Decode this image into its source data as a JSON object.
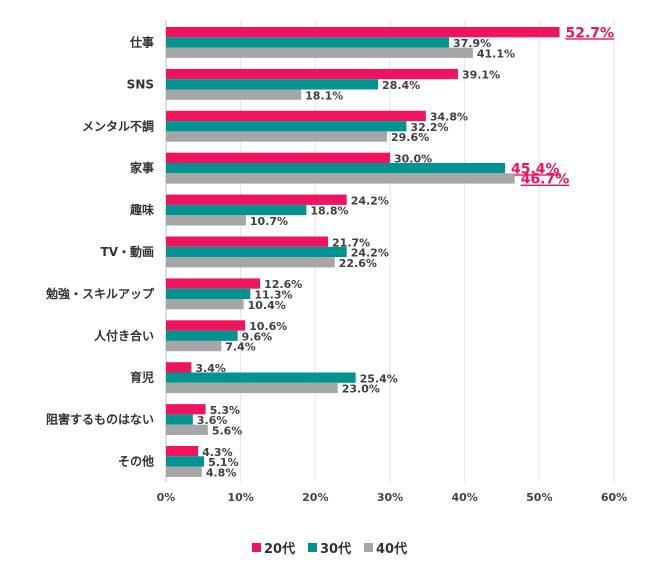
{
  "chart_data": {
    "type": "bar",
    "orientation": "horizontal",
    "title": "",
    "xlabel": "",
    "ylabel": "",
    "xlim": [
      0,
      60
    ],
    "xticks": [
      "0%",
      "10%",
      "20%",
      "30%",
      "40%",
      "50%",
      "60%"
    ],
    "grid": true,
    "legend_position": "bottom",
    "categories": [
      "仕事",
      "SNS",
      "メンタル不調",
      "家事",
      "趣味",
      "TV・動画",
      "勉強・スキルアップ",
      "人付き合い",
      "育児",
      "阻害するものはない",
      "その他"
    ],
    "series": [
      {
        "name": "20代",
        "color": "#F0145F",
        "values": [
          52.7,
          39.1,
          34.8,
          30.0,
          24.2,
          21.7,
          12.6,
          10.6,
          3.4,
          5.3,
          4.3
        ]
      },
      {
        "name": "30代",
        "color": "#00938F",
        "values": [
          37.9,
          28.4,
          32.2,
          45.4,
          18.8,
          24.2,
          11.3,
          9.6,
          25.4,
          3.6,
          5.1
        ]
      },
      {
        "name": "40代",
        "color": "#A6A6A6",
        "values": [
          41.1,
          18.1,
          29.6,
          46.7,
          10.7,
          22.6,
          10.4,
          7.4,
          23.0,
          5.6,
          4.8
        ]
      }
    ],
    "highlighted": [
      [
        0,
        0
      ],
      [
        3,
        1
      ],
      [
        3,
        2
      ]
    ],
    "highlight_color": "#F0145F"
  }
}
